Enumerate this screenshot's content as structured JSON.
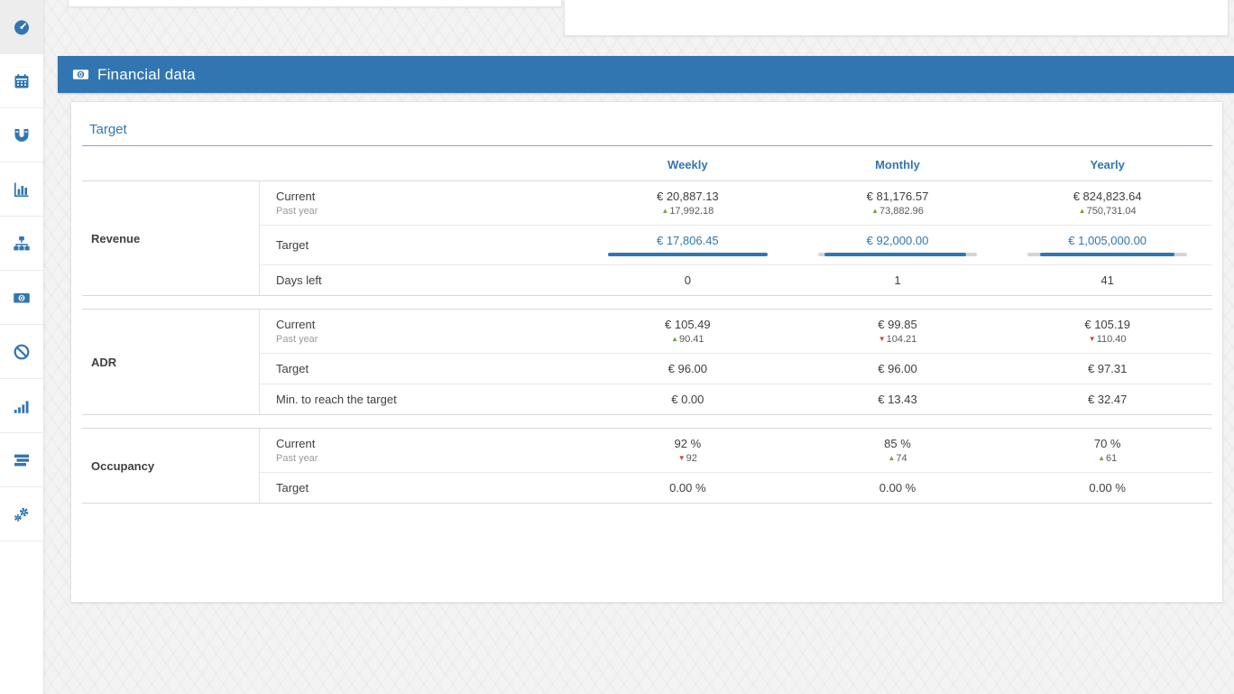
{
  "colors": {
    "accent": "#3276b1",
    "up_green": "#76a340",
    "down_red": "#cf4436"
  },
  "sidebar": {
    "items": [
      {
        "id": "dashboard",
        "icon": "dashboard-icon",
        "active": true
      },
      {
        "id": "calendar",
        "icon": "calendar-icon",
        "active": false
      },
      {
        "id": "magnet",
        "icon": "magnet-icon",
        "active": false
      },
      {
        "id": "bar-chart",
        "icon": "bar-chart-icon",
        "active": false
      },
      {
        "id": "sitemap",
        "icon": "sitemap-icon",
        "active": false
      },
      {
        "id": "money",
        "icon": "money-icon",
        "active": false
      },
      {
        "id": "ban",
        "icon": "ban-icon",
        "active": false
      },
      {
        "id": "signal",
        "icon": "signal-icon",
        "active": false
      },
      {
        "id": "tasks",
        "icon": "tasks-icon",
        "active": false
      },
      {
        "id": "gears",
        "icon": "gears-icon",
        "active": false
      }
    ]
  },
  "panel": {
    "title": "Financial data",
    "icon": "money-icon"
  },
  "section": {
    "title": "Target"
  },
  "table": {
    "column_keys": [
      "weekly",
      "monthly",
      "yearly"
    ],
    "column_headers": [
      "Weekly",
      "Monthly",
      "Yearly"
    ],
    "past_year_label": "Past year",
    "groups": [
      {
        "key": "revenue",
        "label": "Revenue",
        "rows": [
          {
            "key": "current",
            "label": "Current",
            "sublabel": "Past year",
            "type": "current",
            "values": [
              "€ 20,887.13",
              "€ 81,176.57",
              "€ 824,823.64"
            ],
            "past": [
              {
                "dir": "up",
                "value": "17,992.18"
              },
              {
                "dir": "up",
                "value": "73,882.96"
              },
              {
                "dir": "up",
                "value": "750,731.04"
              }
            ]
          },
          {
            "key": "target",
            "label": "Target",
            "type": "target-input",
            "values": [
              "€ 17,806.45",
              "€ 92,000.00",
              "€ 1,005,000.00"
            ],
            "bars": [
              {
                "offset_pct": 0,
                "fill_pct": 100
              },
              {
                "offset_pct": 4,
                "fill_pct": 89
              },
              {
                "offset_pct": 8,
                "fill_pct": 84
              }
            ]
          },
          {
            "key": "days-left",
            "label": "Days left",
            "type": "plain",
            "values": [
              "0",
              "1",
              "41"
            ]
          }
        ]
      },
      {
        "key": "adr",
        "label": "ADR",
        "rows": [
          {
            "key": "current",
            "label": "Current",
            "sublabel": "Past year",
            "type": "current",
            "values": [
              "€ 105.49",
              "€ 99.85",
              "€ 105.19"
            ],
            "past": [
              {
                "dir": "up",
                "value": "90.41"
              },
              {
                "dir": "down",
                "value": "104.21"
              },
              {
                "dir": "down",
                "value": "110.40"
              }
            ]
          },
          {
            "key": "target",
            "label": "Target",
            "type": "plain",
            "values": [
              "€ 96.00",
              "€ 96.00",
              "€ 97.31"
            ]
          },
          {
            "key": "min-to-target",
            "label": "Min. to reach the target",
            "type": "plain",
            "values": [
              "€ 0.00",
              "€ 13.43",
              "€ 32.47"
            ]
          }
        ]
      },
      {
        "key": "occupancy",
        "label": "Occupancy",
        "rows": [
          {
            "key": "current",
            "label": "Current",
            "sublabel": "Past year",
            "type": "current",
            "values": [
              "92 %",
              "85 %",
              "70 %"
            ],
            "past": [
              {
                "dir": "down",
                "value": "92"
              },
              {
                "dir": "up",
                "value": "74"
              },
              {
                "dir": "up",
                "value": "61"
              }
            ]
          },
          {
            "key": "target",
            "label": "Target",
            "type": "plain",
            "values": [
              "0.00 %",
              "0.00 %",
              "0.00 %"
            ]
          }
        ]
      }
    ]
  }
}
